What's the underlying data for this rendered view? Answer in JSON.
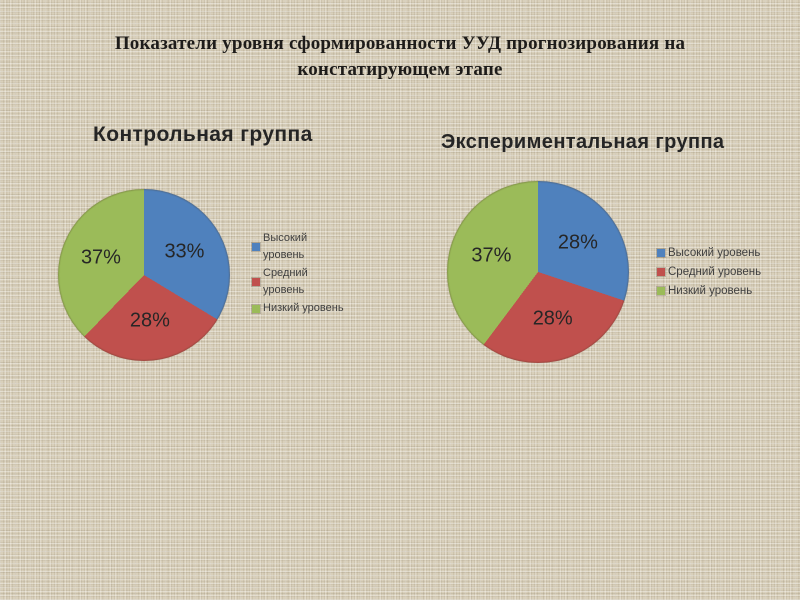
{
  "slide": {
    "title": "Показатели уровня сформированности УУД прогнозирования на констатирующем этапе",
    "background_color": "#D9D0BB"
  },
  "chart_data": [
    {
      "type": "pie",
      "title": "Контрольная группа",
      "labels": [
        "Высокий уровень",
        "Средний уровень",
        "Низкий уровень"
      ],
      "values": [
        33,
        28,
        37
      ],
      "unit": "%",
      "data_labels": [
        "33%",
        "28%",
        "37%"
      ],
      "colors": [
        "#4F81BD",
        "#C0504D",
        "#9BBB59"
      ],
      "start_angle_deg": 0,
      "direction": "clockwise",
      "legend_position": "right",
      "label_color": "#262626"
    },
    {
      "type": "pie",
      "title": "Экспериментальная группа",
      "labels": [
        "Высокий уровень",
        "Средний уровень",
        "Низкий уровень"
      ],
      "values": [
        28,
        28,
        37
      ],
      "unit": "%",
      "data_labels": [
        "28%",
        "28%",
        "37%"
      ],
      "colors": [
        "#4F81BD",
        "#C0504D",
        "#9BBB59"
      ],
      "start_angle_deg": 0,
      "direction": "clockwise",
      "legend_position": "right",
      "label_color": "#262626"
    }
  ]
}
